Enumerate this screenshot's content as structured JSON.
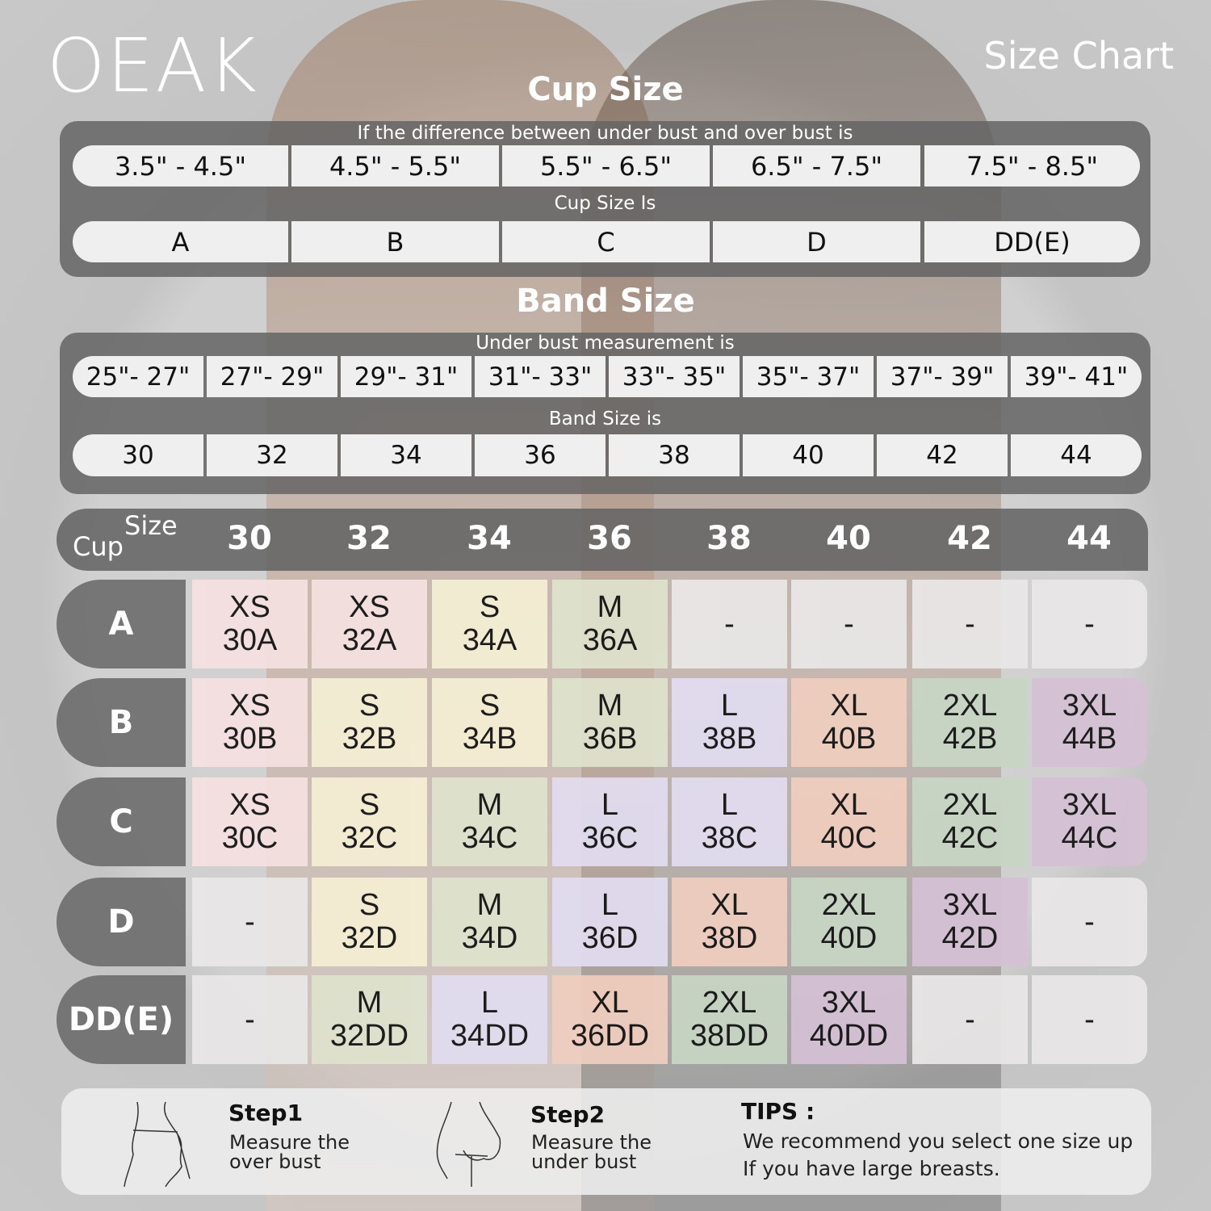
{
  "brand": "OEAK",
  "page_title": "Size Chart",
  "cup_section": {
    "title": "Cup Size",
    "subtitle": "If the  difference between under bust and over bust is",
    "ranges": [
      "3.5\" -  4.5\"",
      "4.5\" -  5.5\"",
      "5.5\" -  6.5\"",
      "6.5\" -  7.5\"",
      "7.5\" -  8.5\""
    ],
    "result_label": "Cup Size Is",
    "cups": [
      "A",
      "B",
      "C",
      "D",
      "DD(E)"
    ]
  },
  "band_section": {
    "title": "Band Size",
    "subtitle": "Under bust measurement is",
    "ranges": [
      "25\"- 27\"",
      "27\"- 29\"",
      "29\"- 31\"",
      "31\"- 33\"",
      "33\"- 35\"",
      "35\"- 37\"",
      "37\"- 39\"",
      "39\"- 41\""
    ],
    "result_label": "Band Size is",
    "bands": [
      "30",
      "32",
      "34",
      "36",
      "38",
      "40",
      "42",
      "44"
    ]
  },
  "table": {
    "corner_size": "Size",
    "corner_cup": "Cup",
    "columns": [
      "30",
      "32",
      "34",
      "36",
      "38",
      "40",
      "42",
      "44"
    ],
    "rows": [
      {
        "cup": "A",
        "cells": [
          [
            "XS",
            "30A"
          ],
          [
            "XS",
            "32A"
          ],
          [
            "S",
            "34A"
          ],
          [
            "M",
            "36A"
          ],
          [
            "-",
            ""
          ],
          [
            "-",
            ""
          ],
          [
            "-",
            ""
          ],
          [
            "-",
            ""
          ]
        ]
      },
      {
        "cup": "B",
        "cells": [
          [
            "XS",
            "30B"
          ],
          [
            "S",
            "32B"
          ],
          [
            "S",
            "34B"
          ],
          [
            "M",
            "36B"
          ],
          [
            "L",
            "38B"
          ],
          [
            "XL",
            "40B"
          ],
          [
            "2XL",
            "42B"
          ],
          [
            "3XL",
            "44B"
          ]
        ]
      },
      {
        "cup": "C",
        "cells": [
          [
            "XS",
            "30C"
          ],
          [
            "S",
            "32C"
          ],
          [
            "M",
            "34C"
          ],
          [
            "L",
            "36C"
          ],
          [
            "L",
            "38C"
          ],
          [
            "XL",
            "40C"
          ],
          [
            "2XL",
            "42C"
          ],
          [
            "3XL",
            "44C"
          ]
        ]
      },
      {
        "cup": "D",
        "cells": [
          [
            "-",
            ""
          ],
          [
            "S",
            "32D"
          ],
          [
            "M",
            "34D"
          ],
          [
            "L",
            "36D"
          ],
          [
            "XL",
            "38D"
          ],
          [
            "2XL",
            "40D"
          ],
          [
            "3XL",
            "42D"
          ],
          [
            "-",
            ""
          ]
        ]
      },
      {
        "cup": "DD(E)",
        "cells": [
          [
            "-",
            ""
          ],
          [
            "M",
            "32DD"
          ],
          [
            "L",
            "34DD"
          ],
          [
            "XL",
            "36DD"
          ],
          [
            "2XL",
            "38DD"
          ],
          [
            "3XL",
            "40DD"
          ],
          [
            "-",
            ""
          ],
          [
            "-",
            ""
          ]
        ]
      }
    ]
  },
  "size_colors": {
    "XS": "#f6e1e1",
    "S": "#f5efd4",
    "M": "#dfe3cd",
    "L": "#e2ddf0",
    "XL": "#f0cebf",
    "2XL": "#c8d6c5",
    "3XL": "#d5c1d5",
    "-": "#e9e7e7"
  },
  "steps": [
    {
      "title": "Step1",
      "desc1": "Measure the",
      "desc2": "over bust",
      "icon": "measure-over-bust-icon"
    },
    {
      "title": "Step2",
      "desc1": "Measure the",
      "desc2": "under bust",
      "icon": "measure-under-bust-icon"
    }
  ],
  "tips": {
    "title": "TIPS :",
    "line1": "We recommend you select one size up",
    "line2": "If you have large breasts."
  }
}
